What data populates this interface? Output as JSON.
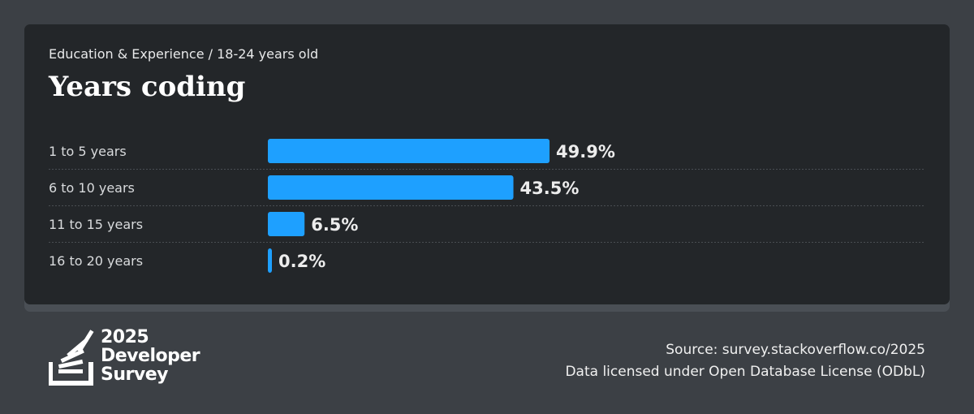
{
  "header": {
    "breadcrumb": "Education & Experience / 18-24 years old",
    "title": "Years coding"
  },
  "chart_data": {
    "type": "bar",
    "orientation": "horizontal",
    "categories": [
      "1 to 5 years",
      "6 to 10 years",
      "11 to 15 years",
      "16 to 20 years"
    ],
    "values": [
      49.9,
      43.5,
      6.5,
      0.2
    ],
    "value_labels": [
      "49.9%",
      "43.5%",
      "6.5%",
      "0.2%"
    ],
    "xlim": [
      0,
      100
    ],
    "bar_color": "#1ea0ff",
    "title": "Years coding",
    "xlabel": "",
    "ylabel": ""
  },
  "logo": {
    "line1": "2025",
    "line2": "Developer",
    "line3": "Survey",
    "icon": "stackoverflow-logo-icon"
  },
  "footer": {
    "source": "Source: survey.stackoverflow.co/2025",
    "license": "Data licensed under Open Database License (ODbL)"
  },
  "colors": {
    "background": "#3c4045",
    "card": "#232629",
    "accent": "#1ea0ff"
  }
}
